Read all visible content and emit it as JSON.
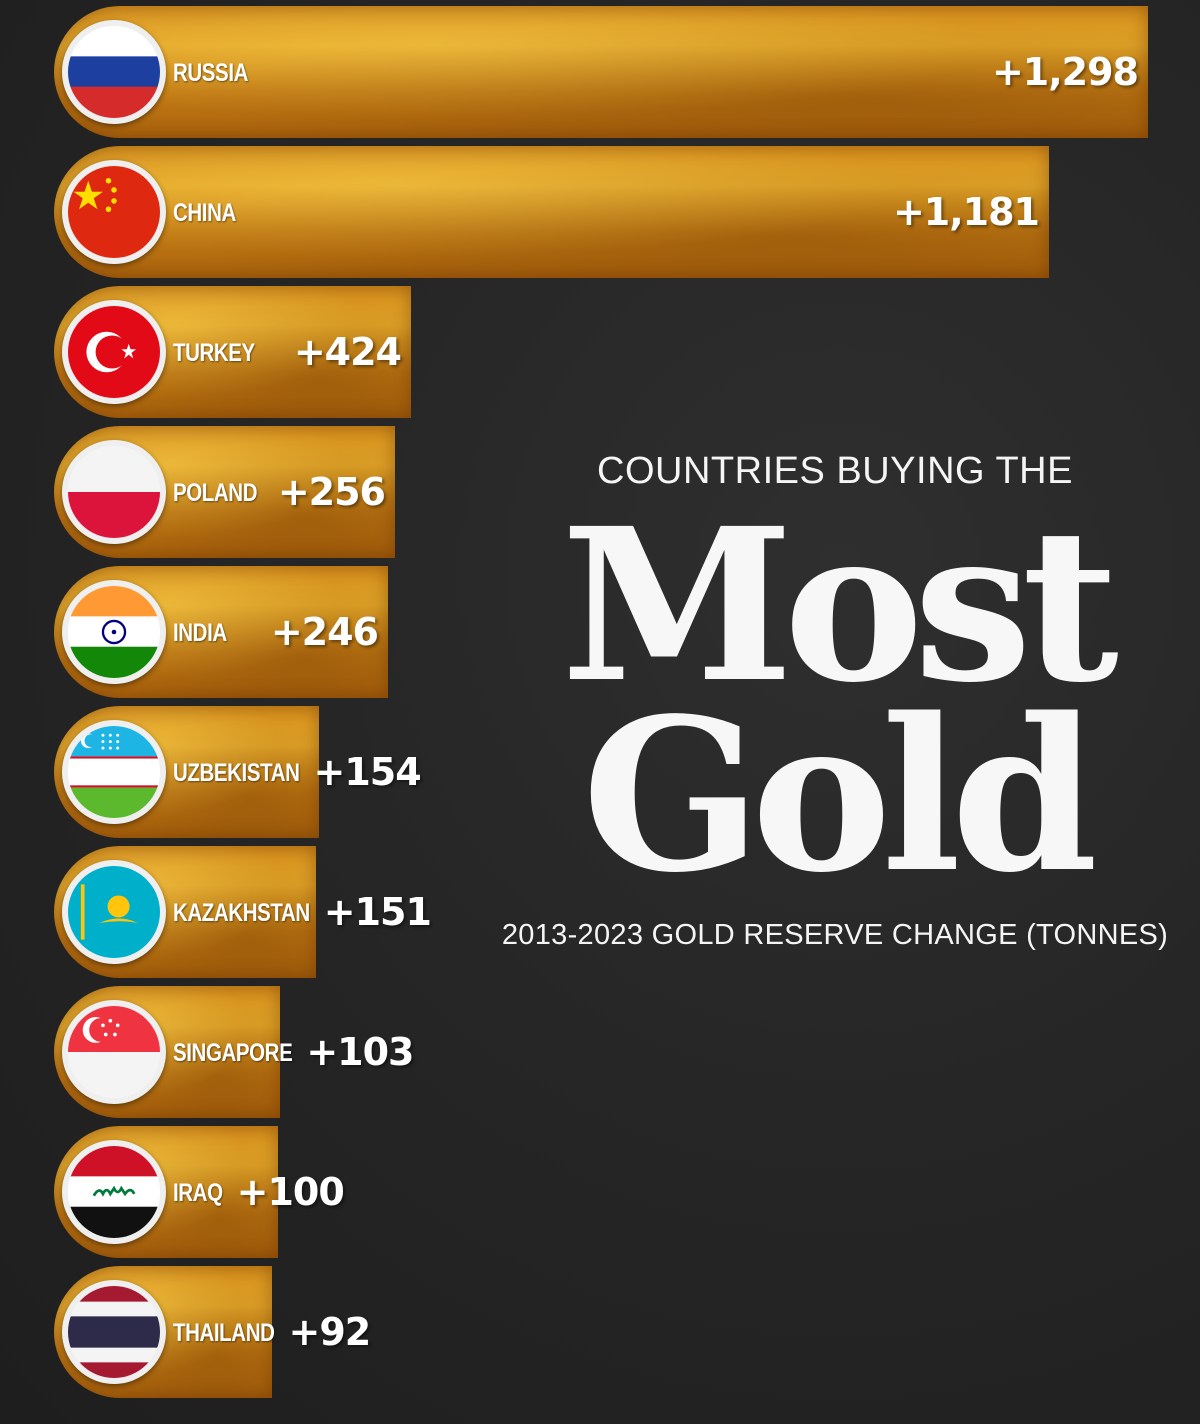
{
  "chart_data": {
    "type": "bar",
    "orientation": "horizontal",
    "title": "COUNTRIES BUYING THE",
    "title_emphasis": [
      "Most",
      "Gold"
    ],
    "subtitle": "2013-2023 GOLD RESERVE CHANGE (TONNES)",
    "categories": [
      "RUSSIA",
      "CHINA",
      "TURKEY",
      "POLAND",
      "INDIA",
      "UZBEKISTAN",
      "KAZAKHSTAN",
      "SINGAPORE",
      "IRAQ",
      "THAILAND"
    ],
    "values": [
      1298,
      1181,
      424,
      256,
      246,
      154,
      151,
      103,
      100,
      92
    ],
    "value_labels": [
      "+1,298",
      "+1,181",
      "+424",
      "+256",
      "+246",
      "+154",
      "+151",
      "+103",
      "+100",
      "+92"
    ],
    "flag_icons": [
      "russia-flag-icon",
      "china-flag-icon",
      "turkey-flag-icon",
      "poland-flag-icon",
      "india-flag-icon",
      "uzbekistan-flag-icon",
      "kazakhstan-flag-icon",
      "singapore-flag-icon",
      "iraq-flag-icon",
      "thailand-flag-icon"
    ],
    "xlim": [
      0,
      1298
    ],
    "grid": false,
    "legend": "none",
    "colors": {
      "bar": "#d99a22",
      "background": "#262626",
      "text": "#ffffff"
    }
  }
}
